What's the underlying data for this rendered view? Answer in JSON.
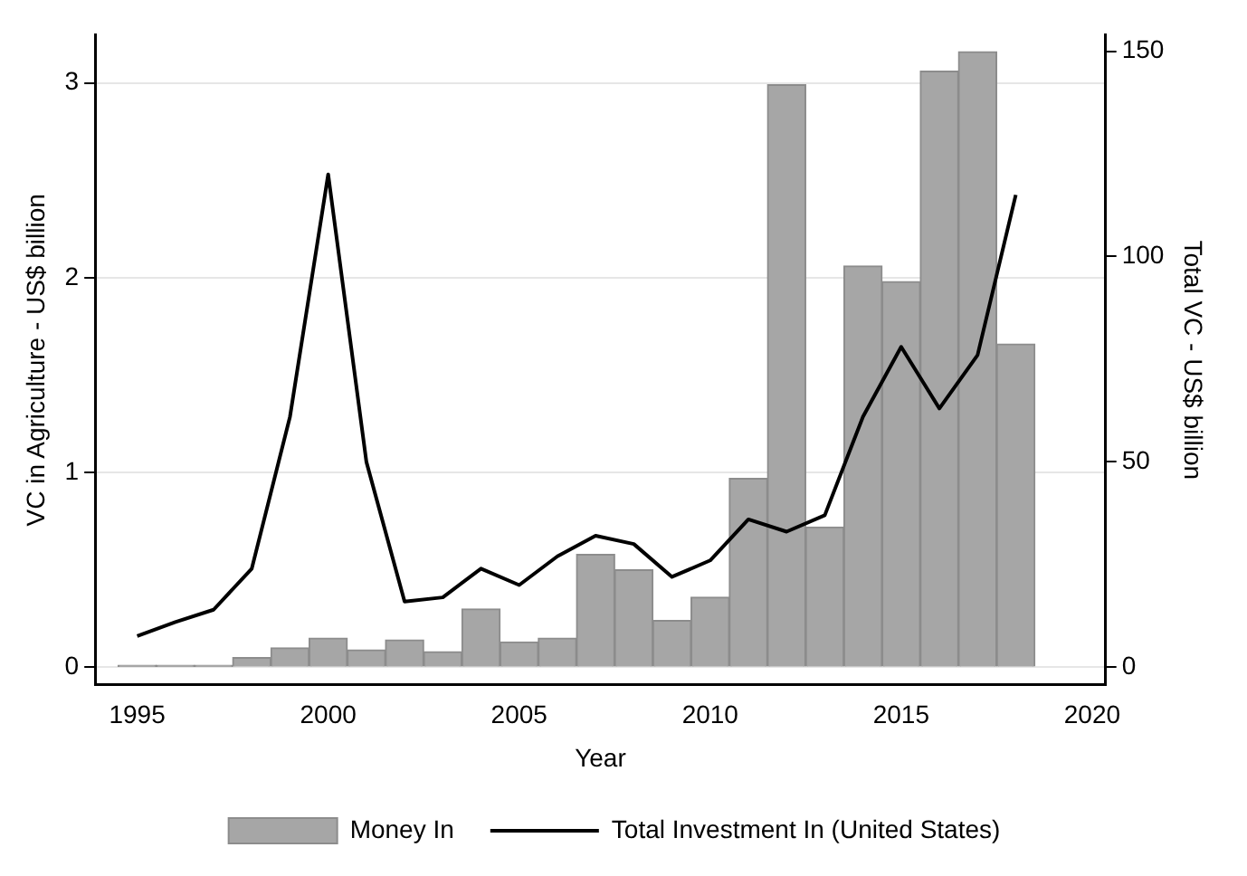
{
  "chart_data": {
    "type": "bar",
    "xlabel": "Year",
    "ylabel": "VC in Agriculture - US$ billion",
    "y2label": "Total VC - US$ billion",
    "x": [
      1995,
      1996,
      1997,
      1998,
      1999,
      2000,
      2001,
      2002,
      2003,
      2004,
      2005,
      2006,
      2007,
      2008,
      2009,
      2010,
      2011,
      2012,
      2013,
      2014,
      2015,
      2016,
      2017,
      2018
    ],
    "series": [
      {
        "name": "Money In",
        "color": "#a6a6a6",
        "values": [
          0.01,
          0.01,
          0.01,
          0.05,
          0.1,
          0.15,
          0.09,
          0.14,
          0.08,
          0.3,
          0.13,
          0.15,
          0.58,
          0.5,
          0.24,
          0.36,
          0.97,
          2.99,
          0.72,
          2.06,
          1.98,
          3.06,
          3.16,
          1.66
        ]
      },
      {
        "name": "Total Investment In (United States)",
        "type": "line",
        "axis": "y2",
        "color": "#000000",
        "values": [
          7.6,
          11,
          14,
          24,
          61,
          120,
          50,
          16,
          17,
          24,
          20,
          27,
          32,
          30,
          22,
          26,
          36,
          33,
          37,
          61,
          78,
          63,
          76,
          115
        ]
      }
    ],
    "xlim": [
      1993.9,
      2020.35
    ],
    "xticks": [
      1995,
      2000,
      2005,
      2010,
      2015,
      2020
    ],
    "ylim": [
      -0.09,
      3.245
    ],
    "yticks": [
      0,
      1,
      2,
      3
    ],
    "y2lim": [
      -4.3,
      153.9
    ],
    "y2ticks": [
      0,
      50,
      100,
      150
    ],
    "grid": "y",
    "legend": "bottom",
    "marker": "none"
  }
}
